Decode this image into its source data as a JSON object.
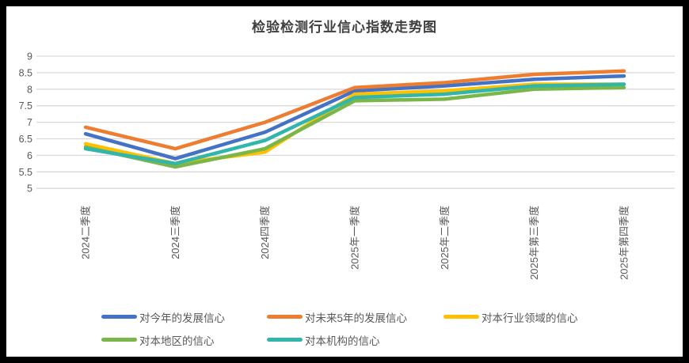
{
  "frame": {
    "border_color": "#000000",
    "background": "#ffffff"
  },
  "chart_data": {
    "type": "line",
    "title": "检验检测行业信心指数走势图",
    "categories": [
      "2024二季度",
      "2024三季度",
      "2024四季度",
      "2025年一季度",
      "2025年二季度",
      "2025年第三季度",
      "2025年第四季度"
    ],
    "series": [
      {
        "name": "对今年的发展信心",
        "color": "#4472C4",
        "values": [
          6.65,
          5.9,
          6.7,
          7.95,
          8.1,
          8.3,
          8.4
        ]
      },
      {
        "name": "对未来5年的发展信心",
        "color": "#ED7D31",
        "values": [
          6.85,
          6.2,
          7.0,
          8.05,
          8.2,
          8.45,
          8.55
        ]
      },
      {
        "name": "对本行业领域的信心",
        "color": "#FFC000",
        "values": [
          6.35,
          5.75,
          6.1,
          7.85,
          7.95,
          8.15,
          8.15
        ]
      },
      {
        "name": "对本地区的信心",
        "color": "#7AB648",
        "values": [
          6.25,
          5.65,
          6.2,
          7.65,
          7.7,
          8.0,
          8.05
        ]
      },
      {
        "name": "对本机构的信心",
        "color": "#31B6AC",
        "values": [
          6.2,
          5.75,
          6.45,
          7.75,
          7.85,
          8.1,
          8.15
        ]
      }
    ],
    "ylim": [
      5,
      9
    ],
    "ytick_step": 0.5,
    "yticks": [
      "9",
      "8.5",
      "8",
      "7.5",
      "7",
      "6.5",
      "6",
      "5.5",
      "5"
    ],
    "xlabel": "",
    "ylabel": "",
    "grid": true,
    "gridline_color": "#D9D9D9",
    "axis_label_color": "#595959",
    "line_width": 4.5,
    "legend_position": "bottom",
    "legend_rows": [
      [
        0,
        1,
        2
      ],
      [
        3,
        4
      ]
    ]
  }
}
